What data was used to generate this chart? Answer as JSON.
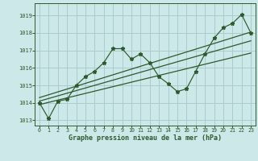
{
  "xlabel": "Graphe pression niveau de la mer (hPa)",
  "bg_color": "#cce8e8",
  "grid_color": "#aacccc",
  "line_color": "#2d5a2d",
  "text_color": "#2d5a2d",
  "xlim": [
    -0.5,
    23.5
  ],
  "ylim": [
    1012.7,
    1019.7
  ],
  "yticks": [
    1013,
    1014,
    1015,
    1016,
    1017,
    1018,
    1019
  ],
  "xticks": [
    0,
    1,
    2,
    3,
    4,
    5,
    6,
    7,
    8,
    9,
    10,
    11,
    12,
    13,
    14,
    15,
    16,
    17,
    18,
    19,
    20,
    21,
    22,
    23
  ],
  "x": [
    0,
    1,
    2,
    3,
    4,
    5,
    6,
    7,
    8,
    9,
    10,
    11,
    12,
    13,
    14,
    15,
    16,
    17,
    18,
    19,
    20,
    21,
    22,
    23
  ],
  "y": [
    1014.0,
    1013.1,
    1014.1,
    1014.2,
    1015.0,
    1015.5,
    1015.8,
    1016.3,
    1017.1,
    1017.1,
    1016.5,
    1016.8,
    1016.3,
    1015.5,
    1015.1,
    1014.65,
    1014.8,
    1015.8,
    1016.8,
    1017.7,
    1018.3,
    1018.55,
    1019.05,
    1018.0
  ],
  "trend1_x": [
    0,
    23
  ],
  "trend1_y": [
    1013.9,
    1016.85
  ],
  "trend2_x": [
    0,
    23
  ],
  "trend2_y": [
    1014.1,
    1017.55
  ],
  "trend3_x": [
    0,
    23
  ],
  "trend3_y": [
    1014.3,
    1018.05
  ]
}
